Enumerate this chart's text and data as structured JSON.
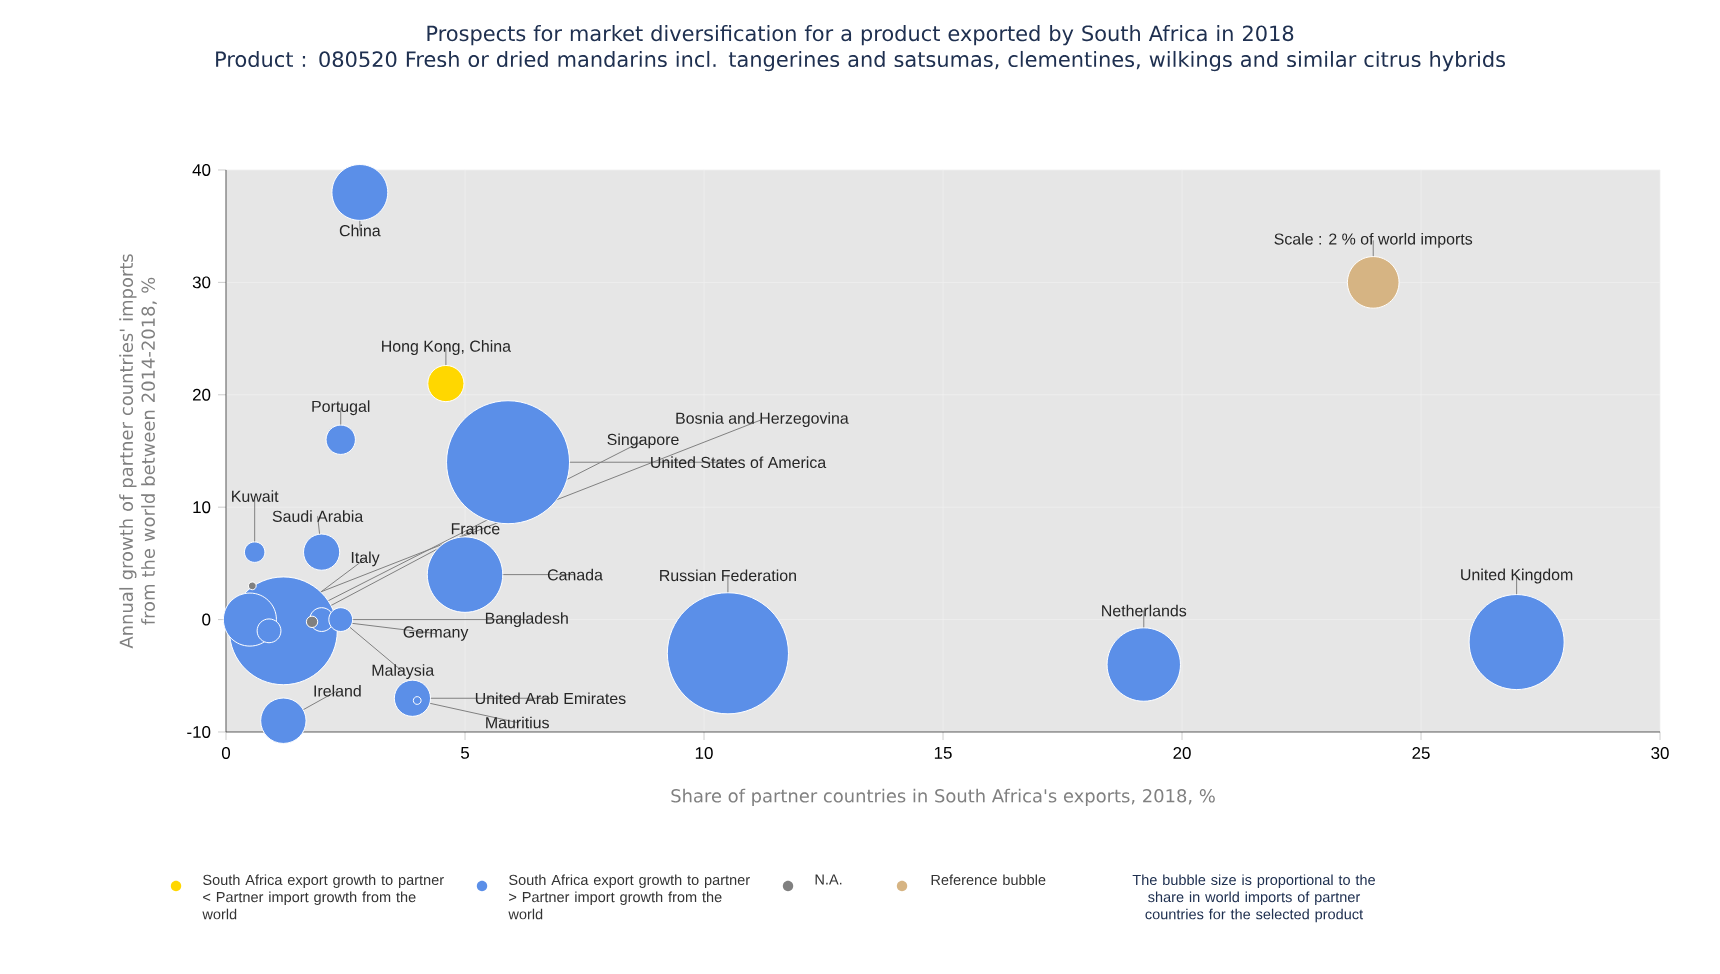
{
  "chart_data": {
    "type": "bubble",
    "title": "Prospects for market diversification for a product exported by South Africa in 2018",
    "subtitle": "Product : 080520 Fresh or dried mandarins incl. tangerines and satsumas, clementines, wilkings and similar citrus hybrids",
    "xlabel": "Share of partner countries in South Africa's exports, 2018, %",
    "ylabel": "Annual growth of partner countries' imports from the world between 2014-2018, %",
    "xlim": [
      0,
      30
    ],
    "ylim": [
      -10,
      40
    ],
    "xticks": [
      0,
      5,
      10,
      15,
      20,
      25,
      30
    ],
    "yticks": [
      -10,
      0,
      10,
      20,
      30,
      40
    ],
    "grid": true,
    "legend": "bottom",
    "series": [
      {
        "name": "South Africa export growth to partner < Partner import growth from the world",
        "color": "#ffd700",
        "x": [
          4.6
        ],
        "values": [
          21
        ],
        "sizes": [
          0.09
        ]
      },
      {
        "name": "South Africa export growth to partner > Partner import growth from the world",
        "color": "#5b8fe8",
        "x": [
          2.8,
          2.4,
          5.9,
          0.6,
          2.0,
          1.2,
          0.5,
          0.9,
          2.0,
          2.4,
          5.0,
          10.5,
          19.2,
          27,
          3.9,
          4.0,
          1.2
        ],
        "values": [
          38,
          16,
          14,
          6,
          6,
          -1,
          0,
          -1,
          0,
          0,
          4,
          -3,
          -4,
          -2,
          -7,
          -7.2,
          -9
        ],
        "sizes": [
          0.21,
          0.06,
          1,
          0.03,
          0.09,
          0.77,
          0.19,
          0.04,
          0.04,
          0.04,
          0.38,
          0.97,
          0.36,
          0.6,
          0.09,
          0.005,
          0.14
        ]
      },
      {
        "name": "N.A.",
        "color": "#808080",
        "x": [
          0.55,
          1.8
        ],
        "values": [
          3,
          -0.2
        ],
        "sizes": [
          0.005,
          0.01
        ]
      },
      {
        "name": "Reference bubble",
        "color": "#d6b483",
        "x": [
          24
        ],
        "values": [
          30
        ],
        "sizes": [
          0.18
        ]
      }
    ],
    "annotations": [
      {
        "text": "China",
        "x": 2.8,
        "y": 38
      },
      {
        "text": "Hong Kong, China",
        "x": 4.6,
        "y": 21
      },
      {
        "text": "Portugal",
        "x": 2.4,
        "y": 16
      },
      {
        "text": "Bosnia and Herzegovina",
        "x": 0.5,
        "y": 0
      },
      {
        "text": "Singapore",
        "x": 0.9,
        "y": -1
      },
      {
        "text": "United States of America",
        "x": 5.9,
        "y": 14
      },
      {
        "text": "Kuwait",
        "x": 0.6,
        "y": 6
      },
      {
        "text": "Saudi Arabia",
        "x": 2.0,
        "y": 6
      },
      {
        "text": "Italy",
        "x": 0.9,
        "y": -1
      },
      {
        "text": "France",
        "x": 1.2,
        "y": -1
      },
      {
        "text": "Canada",
        "x": 5.0,
        "y": 4
      },
      {
        "text": "Russian Federation",
        "x": 10.5,
        "y": -3
      },
      {
        "text": "Netherlands",
        "x": 19.2,
        "y": -4
      },
      {
        "text": "United Kingdom",
        "x": 27,
        "y": -2
      },
      {
        "text": "Bangladesh",
        "x": 2.4,
        "y": 0
      },
      {
        "text": "Germany",
        "x": 2.0,
        "y": 0
      },
      {
        "text": "Malaysia",
        "x": 2.4,
        "y": 0
      },
      {
        "text": "Ireland",
        "x": 1.2,
        "y": -9
      },
      {
        "text": "United Arab Emirates",
        "x": 3.9,
        "y": -7
      },
      {
        "text": "Mauritius",
        "x": 4.0,
        "y": -7.2
      },
      {
        "text": "Scale : 2 % of world imports",
        "x": 24,
        "y": 30
      },
      "The bubble size is proportional to the share in world imports of partner countries for the selected product"
    ]
  }
}
